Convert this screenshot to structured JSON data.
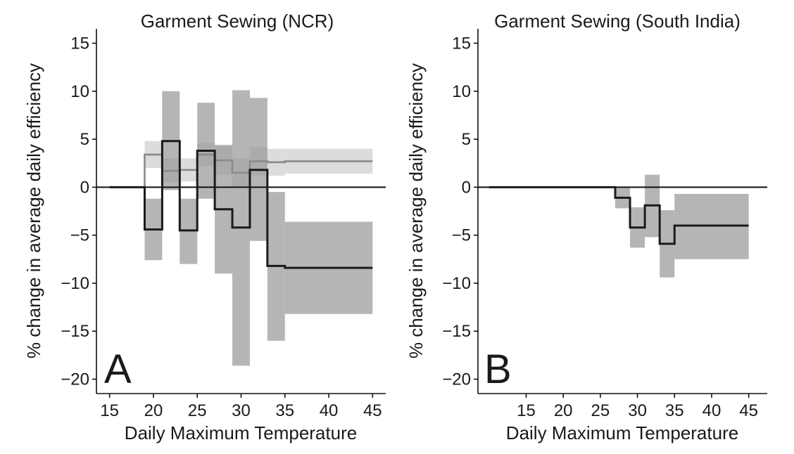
{
  "chart_data": [
    {
      "type": "step",
      "panel_label": "A",
      "title": "Garment Sewing (NCR)",
      "xlabel": "Daily Maximum Temperature",
      "ylabel": "% change in average daily efficiency",
      "xlim": [
        13.5,
        46.5
      ],
      "ylim": [
        -21.5,
        16.5
      ],
      "xticks": [
        15,
        20,
        25,
        30,
        35,
        40,
        45
      ],
      "yticks": [
        -20,
        -15,
        -10,
        -5,
        0,
        5,
        10,
        15
      ],
      "zero_line": true,
      "grid": false,
      "series": [
        {
          "color": "#8a8a8a",
          "band_color": "#cfcfcf",
          "steps": [
            {
              "x0": 15,
              "x1": 19,
              "y": 0,
              "lo": 0,
              "hi": 0
            },
            {
              "x0": 19,
              "x1": 21,
              "y": 3.4,
              "lo": 2.0,
              "hi": 4.8
            },
            {
              "x0": 21,
              "x1": 23,
              "y": 1.7,
              "lo": 0.5,
              "hi": 3.0
            },
            {
              "x0": 23,
              "x1": 25,
              "y": 1.8,
              "lo": 0.6,
              "hi": 3.0
            },
            {
              "x0": 25,
              "x1": 27,
              "y": 3.4,
              "lo": 2.2,
              "hi": 4.6
            },
            {
              "x0": 27,
              "x1": 29,
              "y": 2.8,
              "lo": 1.3,
              "hi": 4.3
            },
            {
              "x0": 29,
              "x1": 31,
              "y": 1.5,
              "lo": 0.0,
              "hi": 3.0
            },
            {
              "x0": 31,
              "x1": 33,
              "y": 2.7,
              "lo": 1.2,
              "hi": 4.2
            },
            {
              "x0": 33,
              "x1": 35,
              "y": 2.6,
              "lo": 1.2,
              "hi": 4.0
            },
            {
              "x0": 35,
              "x1": 45,
              "y": 2.7,
              "lo": 1.4,
              "hi": 4.0
            }
          ]
        },
        {
          "color": "#1a1a1a",
          "band_color": "#999999",
          "steps": [
            {
              "x0": 15,
              "x1": 19,
              "y": 0,
              "lo": 0,
              "hi": 0
            },
            {
              "x0": 19,
              "x1": 21,
              "y": -4.4,
              "lo": -7.6,
              "hi": -1.2
            },
            {
              "x0": 21,
              "x1": 23,
              "y": 4.8,
              "lo": -0.3,
              "hi": 10.0
            },
            {
              "x0": 23,
              "x1": 25,
              "y": -4.5,
              "lo": -8.0,
              "hi": -1.2
            },
            {
              "x0": 25,
              "x1": 27,
              "y": 3.8,
              "lo": -1.2,
              "hi": 8.8
            },
            {
              "x0": 27,
              "x1": 29,
              "y": -2.3,
              "lo": -9.0,
              "hi": 4.4
            },
            {
              "x0": 29,
              "x1": 31,
              "y": -4.2,
              "lo": -18.6,
              "hi": 10.1
            },
            {
              "x0": 31,
              "x1": 33,
              "y": 1.8,
              "lo": -5.6,
              "hi": 9.3
            },
            {
              "x0": 33,
              "x1": 35,
              "y": -8.2,
              "lo": -16.0,
              "hi": -0.5
            },
            {
              "x0": 35,
              "x1": 45,
              "y": -8.4,
              "lo": -13.2,
              "hi": -3.6
            }
          ]
        }
      ]
    },
    {
      "type": "step",
      "panel_label": "B",
      "title": "Garment Sewing (South India)",
      "xlabel": "Daily Maximum Temperature",
      "ylabel": "% change in average daily efficiency",
      "xlim": [
        8.5,
        47.5
      ],
      "ylim": [
        -21.5,
        16.5
      ],
      "xticks": [
        15,
        20,
        25,
        30,
        35,
        40,
        45
      ],
      "yticks": [
        -20,
        -15,
        -10,
        -5,
        0,
        5,
        10,
        15
      ],
      "zero_line": true,
      "grid": false,
      "series": [
        {
          "color": "#1a1a1a",
          "band_color": "#999999",
          "steps": [
            {
              "x0": 10,
              "x1": 27,
              "y": 0,
              "lo": 0,
              "hi": 0
            },
            {
              "x0": 27,
              "x1": 29,
              "y": -1.1,
              "lo": -2.2,
              "hi": 0.0
            },
            {
              "x0": 29,
              "x1": 31,
              "y": -4.2,
              "lo": -6.3,
              "hi": -2.1
            },
            {
              "x0": 31,
              "x1": 33,
              "y": -1.9,
              "lo": -5.2,
              "hi": 1.3
            },
            {
              "x0": 33,
              "x1": 35,
              "y": -5.9,
              "lo": -9.4,
              "hi": -2.4
            },
            {
              "x0": 35,
              "x1": 45,
              "y": -4.0,
              "lo": -7.5,
              "hi": -0.7
            }
          ]
        }
      ]
    }
  ]
}
